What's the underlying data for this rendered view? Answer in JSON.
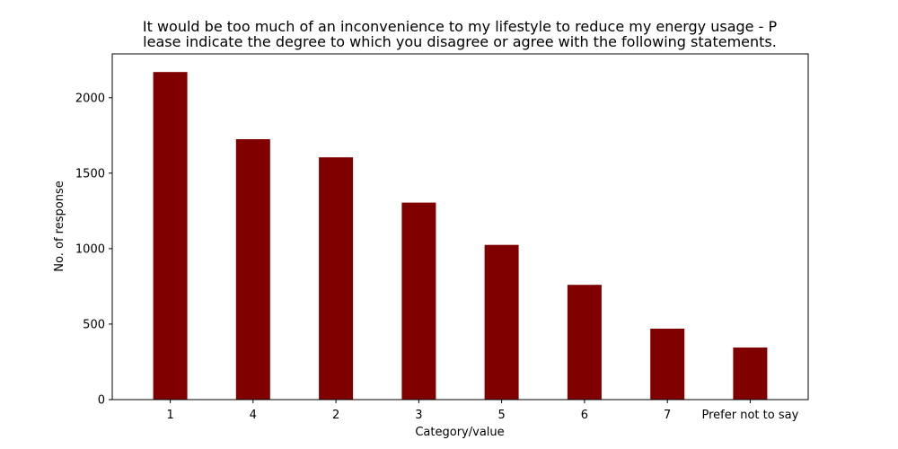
{
  "chart_data": {
    "type": "bar",
    "title_lines": [
      "It would be too much of an inconvenience to my lifestyle to reduce my energy usage - P",
      "lease indicate the degree to which you disagree or agree with the following statements."
    ],
    "xlabel": "Category/value",
    "ylabel": "No. of response",
    "categories": [
      "1",
      "4",
      "2",
      "3",
      "5",
      "6",
      "7",
      "Prefer not to say"
    ],
    "values": [
      2170,
      1725,
      1605,
      1305,
      1025,
      760,
      470,
      345
    ],
    "ylim": [
      0,
      2290
    ],
    "yticks": [
      0,
      500,
      1000,
      1500,
      2000
    ],
    "bar_color": "#800000",
    "grid": false
  }
}
